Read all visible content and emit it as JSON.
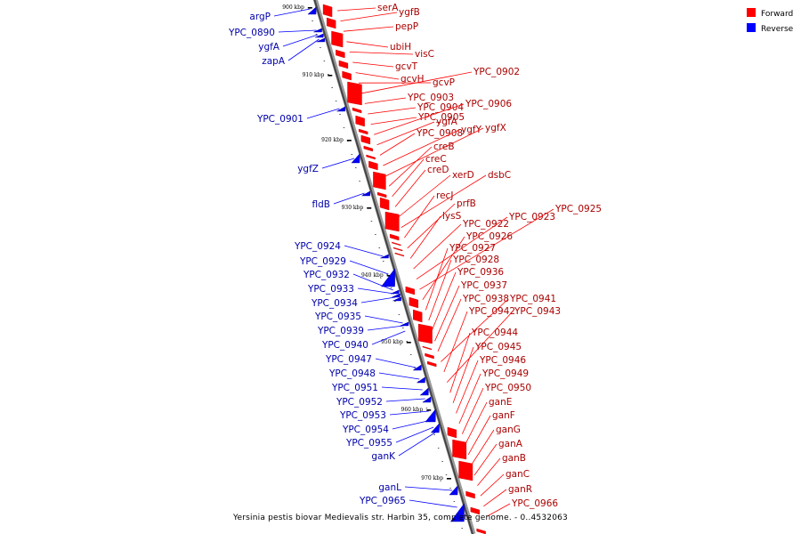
{
  "caption": "Yersinia pestis biovar Medievalis str. Harbin 35, complete genome. - 0..4532063",
  "legend": [
    {
      "label": "Forward",
      "color": "#ff0000"
    },
    {
      "label": "Reverse",
      "color": "#0000ff"
    }
  ],
  "ticks": [
    "900 kbp",
    "910 kbp",
    "920 kbp",
    "930 kbp",
    "940 kbp",
    "950 kbp",
    "960 kbp",
    "970 kbp"
  ],
  "forward_genes": [
    "serA",
    "ygfB",
    "pepP",
    "ubiH",
    "visC",
    "gcvT",
    "gcvH",
    "gcvP",
    "YPC_0902",
    "YPC_0903",
    "YPC_0904",
    "YPC_0905",
    "YPC_0906",
    "ygfA",
    "YPC_0908",
    "ygfY",
    "ygfX",
    "creB",
    "creC",
    "creD",
    "xerD",
    "dsbC",
    "recJ",
    "prfB",
    "lysS",
    "YPC_0922",
    "YPC_0923",
    "YPC_0925",
    "YPC_0926",
    "YPC_0927",
    "YPC_0928",
    "YPC_0936",
    "YPC_0937",
    "YPC_0938",
    "YPC_0941",
    "YPC_0942",
    "YPC_0943",
    "YPC_0944",
    "YPC_0945",
    "YPC_0946",
    "YPC_0949",
    "YPC_0950",
    "ganE",
    "ganF",
    "ganG",
    "ganA",
    "ganB",
    "ganC",
    "ganR",
    "YPC_0966"
  ],
  "reverse_genes": [
    "argP",
    "YPC_0890",
    "ygfA",
    "zapA",
    "YPC_0901",
    "ygfZ",
    "fldB",
    "YPC_0924",
    "YPC_0929",
    "YPC_0932",
    "YPC_0933",
    "YPC_0934",
    "YPC_0935",
    "YPC_0939",
    "YPC_0940",
    "YPC_0947",
    "YPC_0948",
    "YPC_0951",
    "YPC_0952",
    "YPC_0953",
    "YPC_0954",
    "YPC_0955",
    "ganK",
    "ganL",
    "YPC_0965"
  ]
}
